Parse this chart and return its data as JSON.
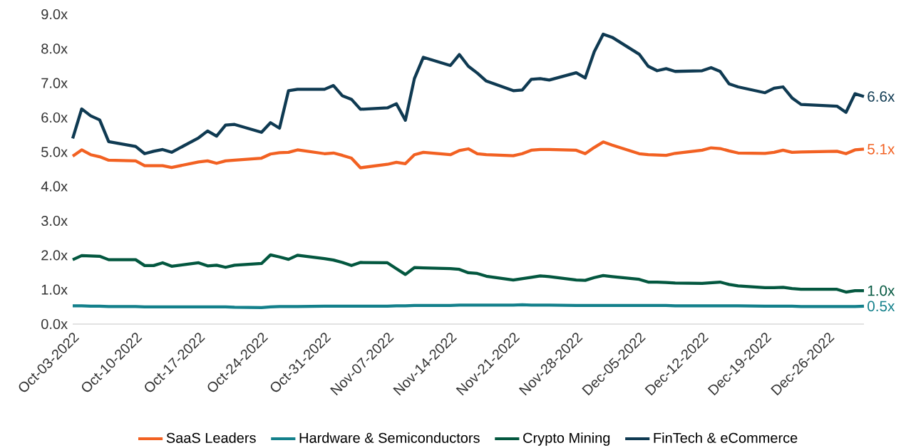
{
  "chart_data": {
    "type": "line",
    "x": [
      "2022-10-03",
      "2022-10-04",
      "2022-10-05",
      "2022-10-06",
      "2022-10-07",
      "2022-10-10",
      "2022-10-11",
      "2022-10-12",
      "2022-10-13",
      "2022-10-14",
      "2022-10-17",
      "2022-10-18",
      "2022-10-19",
      "2022-10-20",
      "2022-10-21",
      "2022-10-24",
      "2022-10-25",
      "2022-10-26",
      "2022-10-27",
      "2022-10-28",
      "2022-10-31",
      "2022-11-01",
      "2022-11-02",
      "2022-11-03",
      "2022-11-04",
      "2022-11-07",
      "2022-11-08",
      "2022-11-09",
      "2022-11-10",
      "2022-11-11",
      "2022-11-14",
      "2022-11-15",
      "2022-11-16",
      "2022-11-17",
      "2022-11-18",
      "2022-11-21",
      "2022-11-22",
      "2022-11-23",
      "2022-11-24",
      "2022-11-25",
      "2022-11-28",
      "2022-11-29",
      "2022-11-30",
      "2022-12-01",
      "2022-12-02",
      "2022-12-05",
      "2022-12-06",
      "2022-12-07",
      "2022-12-08",
      "2022-12-09",
      "2022-12-12",
      "2022-12-13",
      "2022-12-14",
      "2022-12-15",
      "2022-12-16",
      "2022-12-19",
      "2022-12-20",
      "2022-12-21",
      "2022-12-22",
      "2022-12-23",
      "2022-12-27",
      "2022-12-28",
      "2022-12-29",
      "2022-12-30"
    ],
    "series": [
      {
        "name": "SaaS Leaders",
        "color": "#f26122",
        "values": [
          4.88,
          5.06,
          4.92,
          4.86,
          4.76,
          4.74,
          4.6,
          4.6,
          4.6,
          4.55,
          4.71,
          4.74,
          4.67,
          4.74,
          4.76,
          4.82,
          4.94,
          4.98,
          4.99,
          5.06,
          4.95,
          4.97,
          4.9,
          4.82,
          4.54,
          4.64,
          4.7,
          4.66,
          4.92,
          4.99,
          4.92,
          5.04,
          5.09,
          4.95,
          4.92,
          4.89,
          4.95,
          5.05,
          5.07,
          5.07,
          5.05,
          4.95,
          5.13,
          5.29,
          5.2,
          4.95,
          4.92,
          4.91,
          4.9,
          4.96,
          5.05,
          5.12,
          5.1,
          5.03,
          4.97,
          4.96,
          4.99,
          5.05,
          4.99,
          5.0,
          5.02,
          4.95,
          5.06,
          5.08
        ],
        "value_labels": [
          null,
          null,
          null,
          null,
          null,
          null,
          null,
          null,
          null,
          null,
          null,
          null,
          null,
          null,
          null,
          null,
          null,
          null,
          null,
          null,
          null,
          null,
          null,
          null,
          null,
          null,
          null,
          null,
          null,
          null,
          null,
          null,
          null,
          null,
          null,
          null,
          null,
          null,
          null,
          null,
          null,
          null,
          null,
          null,
          null,
          null,
          null,
          null,
          null,
          null,
          null,
          null,
          null,
          null,
          null,
          null,
          null,
          null,
          null,
          null,
          null,
          null,
          null,
          "5.1x"
        ]
      },
      {
        "name": "Hardware & Semiconductors",
        "color": "#13808b",
        "values": [
          0.53,
          0.53,
          0.52,
          0.52,
          0.51,
          0.51,
          0.5,
          0.5,
          0.5,
          0.5,
          0.5,
          0.5,
          0.5,
          0.5,
          0.49,
          0.48,
          0.5,
          0.51,
          0.51,
          0.51,
          0.52,
          0.52,
          0.52,
          0.52,
          0.52,
          0.52,
          0.53,
          0.53,
          0.54,
          0.54,
          0.54,
          0.55,
          0.55,
          0.55,
          0.55,
          0.55,
          0.56,
          0.55,
          0.55,
          0.55,
          0.54,
          0.54,
          0.54,
          0.54,
          0.54,
          0.54,
          0.54,
          0.54,
          0.54,
          0.53,
          0.53,
          0.53,
          0.53,
          0.53,
          0.53,
          0.52,
          0.52,
          0.52,
          0.52,
          0.51,
          0.51,
          0.51,
          0.51,
          0.52
        ],
        "value_labels": [
          null,
          null,
          null,
          null,
          null,
          null,
          null,
          null,
          null,
          null,
          null,
          null,
          null,
          null,
          null,
          null,
          null,
          null,
          null,
          null,
          null,
          null,
          null,
          null,
          null,
          null,
          null,
          null,
          null,
          null,
          null,
          null,
          null,
          null,
          null,
          null,
          null,
          null,
          null,
          null,
          null,
          null,
          null,
          null,
          null,
          null,
          null,
          null,
          null,
          null,
          null,
          null,
          null,
          null,
          null,
          null,
          null,
          null,
          null,
          null,
          null,
          null,
          null,
          "0.5x"
        ]
      },
      {
        "name": "Crypto Mining",
        "color": "#03573f",
        "values": [
          1.87,
          1.99,
          1.98,
          1.97,
          1.87,
          1.87,
          1.7,
          1.7,
          1.78,
          1.68,
          1.78,
          1.69,
          1.71,
          1.65,
          1.71,
          1.76,
          2.01,
          1.95,
          1.88,
          2.0,
          1.9,
          1.86,
          1.79,
          1.7,
          1.79,
          1.78,
          1.61,
          1.44,
          1.64,
          1.63,
          1.61,
          1.59,
          1.49,
          1.47,
          1.39,
          1.28,
          1.32,
          1.36,
          1.4,
          1.38,
          1.28,
          1.27,
          1.35,
          1.41,
          1.38,
          1.3,
          1.22,
          1.22,
          1.21,
          1.19,
          1.18,
          1.2,
          1.22,
          1.15,
          1.11,
          1.06,
          1.06,
          1.07,
          1.03,
          1.01,
          1.01,
          0.93,
          0.97,
          0.97
        ],
        "value_labels": [
          null,
          null,
          null,
          null,
          null,
          null,
          null,
          null,
          null,
          null,
          null,
          null,
          null,
          null,
          null,
          null,
          null,
          null,
          null,
          null,
          null,
          null,
          null,
          null,
          null,
          null,
          null,
          null,
          null,
          null,
          null,
          null,
          null,
          null,
          null,
          null,
          null,
          null,
          null,
          null,
          null,
          null,
          null,
          null,
          null,
          null,
          null,
          null,
          null,
          null,
          null,
          null,
          null,
          null,
          null,
          null,
          null,
          null,
          null,
          null,
          null,
          null,
          null,
          "1.0x"
        ]
      },
      {
        "name": "FinTech & eCommerce",
        "color": "#0f3a52",
        "values": [
          5.39,
          6.25,
          6.05,
          5.93,
          5.3,
          5.16,
          4.95,
          5.02,
          5.07,
          4.99,
          5.41,
          5.61,
          5.46,
          5.78,
          5.8,
          5.57,
          5.85,
          5.69,
          6.78,
          6.82,
          6.82,
          6.93,
          6.63,
          6.53,
          6.24,
          6.28,
          6.4,
          5.92,
          7.13,
          7.75,
          7.51,
          7.83,
          7.49,
          7.29,
          7.06,
          6.78,
          6.8,
          7.11,
          7.13,
          7.09,
          7.3,
          7.15,
          7.91,
          8.42,
          8.33,
          7.84,
          7.49,
          7.36,
          7.42,
          7.34,
          7.36,
          7.45,
          7.34,
          6.98,
          6.89,
          6.72,
          6.85,
          6.89,
          6.57,
          6.38,
          6.33,
          6.15,
          6.69,
          6.61
        ],
        "value_labels": [
          null,
          null,
          null,
          null,
          null,
          null,
          null,
          null,
          null,
          null,
          null,
          null,
          null,
          null,
          null,
          null,
          null,
          null,
          null,
          null,
          null,
          null,
          null,
          null,
          null,
          null,
          null,
          null,
          null,
          null,
          null,
          null,
          null,
          null,
          null,
          null,
          null,
          null,
          null,
          null,
          null,
          null,
          null,
          null,
          null,
          null,
          null,
          null,
          null,
          null,
          null,
          null,
          null,
          null,
          null,
          null,
          null,
          null,
          null,
          null,
          null,
          null,
          null,
          "6.6x"
        ]
      }
    ],
    "xlim": [
      "2022-10-03",
      "2022-12-30"
    ],
    "xticks": [
      {
        "value": "2022-10-03",
        "label": "Oct-03-2022"
      },
      {
        "value": "2022-10-10",
        "label": "Oct-10-2022"
      },
      {
        "value": "2022-10-17",
        "label": "Oct-17-2022"
      },
      {
        "value": "2022-10-24",
        "label": "Oct-24-2022"
      },
      {
        "value": "2022-10-31",
        "label": "Oct-31-2022"
      },
      {
        "value": "2022-11-07",
        "label": "Nov-07-2022"
      },
      {
        "value": "2022-11-14",
        "label": "Nov-14-2022"
      },
      {
        "value": "2022-11-21",
        "label": "Nov-21-2022"
      },
      {
        "value": "2022-11-28",
        "label": "Nov-28-2022"
      },
      {
        "value": "2022-12-05",
        "label": "Dec-05-2022"
      },
      {
        "value": "2022-12-12",
        "label": "Dec-12-2022"
      },
      {
        "value": "2022-12-19",
        "label": "Dec-19-2022"
      },
      {
        "value": "2022-12-26",
        "label": "Dec-26-2022"
      }
    ],
    "ylim": [
      0,
      9
    ],
    "yticks": [
      {
        "value": 0,
        "label": "0.0x"
      },
      {
        "value": 1,
        "label": "1.0x"
      },
      {
        "value": 2,
        "label": "2.0x"
      },
      {
        "value": 3,
        "label": "3.0x"
      },
      {
        "value": 4,
        "label": "4.0x"
      },
      {
        "value": 5,
        "label": "5.0x"
      },
      {
        "value": 6,
        "label": "6.0x"
      },
      {
        "value": 7,
        "label": "7.0x"
      },
      {
        "value": 8,
        "label": "8.0x"
      },
      {
        "value": 9,
        "label": "9.0x"
      }
    ],
    "legend": "bottom"
  }
}
